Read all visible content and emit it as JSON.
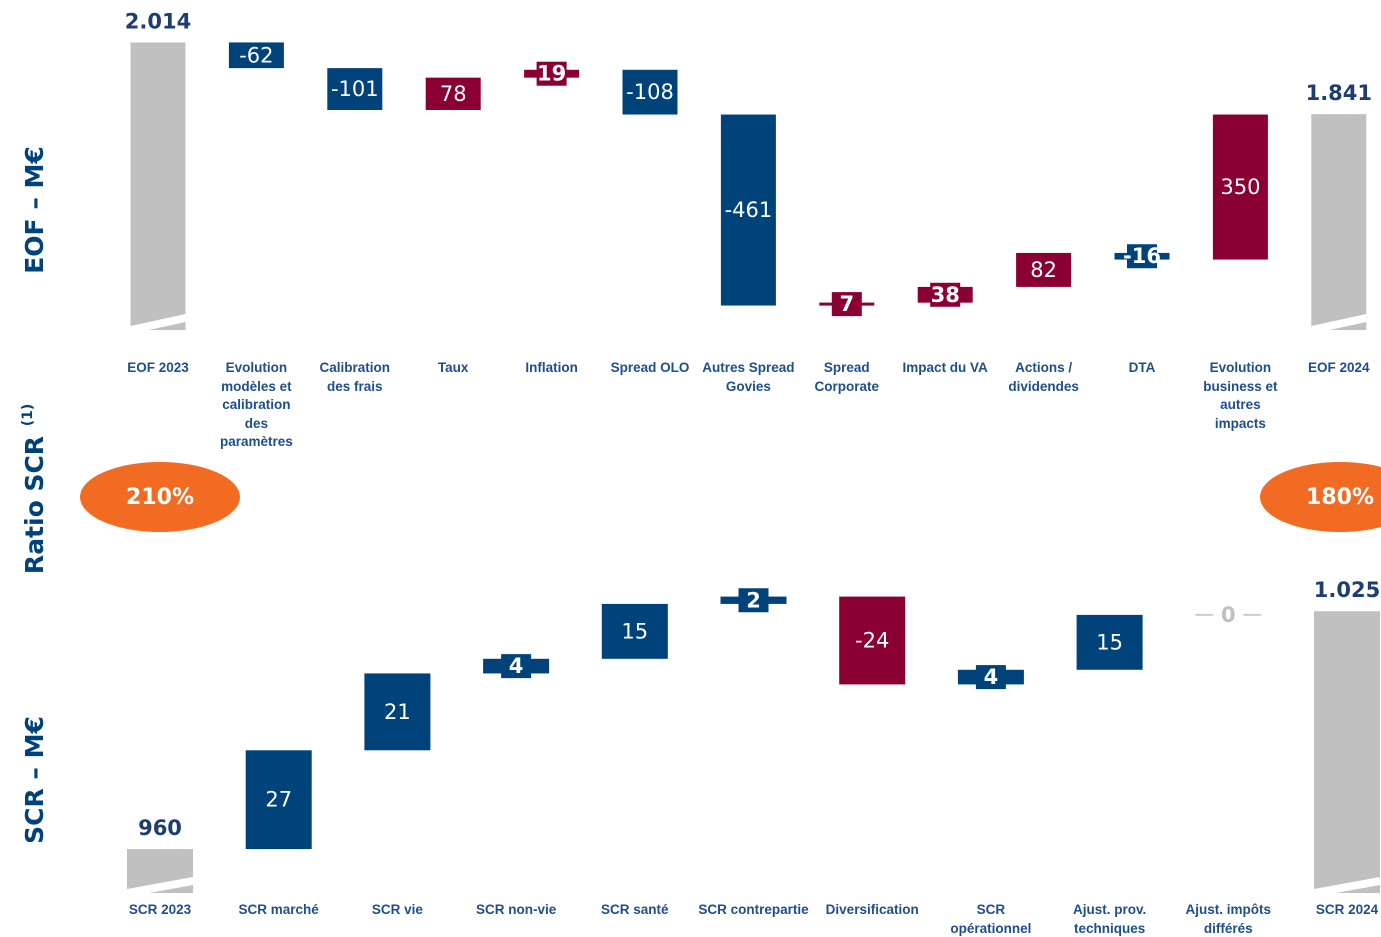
{
  "side_labels": {
    "eof": "EOF – M€",
    "ratio": "Ratio SCR",
    "ratio_note": "(1)",
    "scr": "SCR – M€"
  },
  "ratios": {
    "start": "210%",
    "end": "180%",
    "color": "#f26b22"
  },
  "chart_data": [
    {
      "type": "waterfall",
      "categories": [
        "EOF 2023",
        "Evolution modèles et calibration des paramètres",
        "Calibration des frais",
        "Taux",
        "Inflation",
        "Spread OLO",
        "Autres Spread Govies",
        "Spread Corporate",
        "Impact du VA",
        "Actions / dividendes",
        "DTA",
        "Evolution business et autres impacts",
        "EOF 2024"
      ],
      "values": [
        2014,
        -62,
        -101,
        78,
        19,
        -108,
        -461,
        7,
        38,
        82,
        -16,
        350,
        1841
      ],
      "value_labels": [
        "2.014",
        "-62",
        "-101",
        "78",
        "19",
        "-108",
        "-461",
        "7",
        "38",
        "82",
        "-16",
        "350",
        "1.841"
      ],
      "measures": [
        "total",
        "relative",
        "relative",
        "relative",
        "relative",
        "relative",
        "relative",
        "relative",
        "relative",
        "relative",
        "relative",
        "relative",
        "total"
      ],
      "colors": {
        "total": "#c0c0c0",
        "increase": "#8b0033",
        "decrease": "#00427a",
        "zero": "#c0c0c0"
      },
      "ylim": [
        1320,
        2044
      ]
    },
    {
      "type": "waterfall",
      "categories": [
        "SCR 2023",
        "SCR marché",
        "SCR vie",
        "SCR non-vie",
        "SCR santé",
        "SCR contrepartie",
        "Diversification",
        "SCR opérationnel",
        "Ajust. prov. techniques",
        "Ajust. impôts différés",
        "SCR 2024"
      ],
      "values": [
        960,
        27,
        21,
        4,
        15,
        2,
        -24,
        4,
        15,
        0,
        1025
      ],
      "value_labels": [
        "960",
        "27",
        "21",
        "4",
        "15",
        "2",
        "-24",
        "4",
        "15",
        "0",
        "1.025"
      ],
      "measures": [
        "total",
        "relative",
        "relative",
        "relative",
        "relative",
        "relative",
        "relative",
        "relative",
        "relative",
        "relative",
        "total"
      ],
      "colors": {
        "total": "#c0c0c0",
        "increase": "#00427a",
        "decrease": "#8b0033",
        "zero": "#c0c0c0"
      },
      "ylim": [
        948,
        1039
      ]
    }
  ]
}
